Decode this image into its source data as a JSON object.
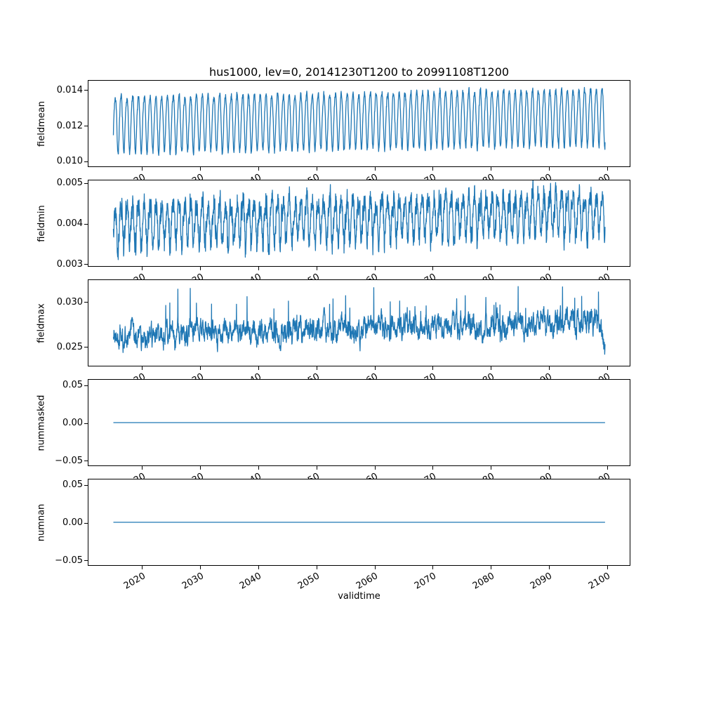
{
  "figure": {
    "title": "hus1000, lev=0, 20141230T1200 to 20991108T1200",
    "xlabel": "validtime",
    "line_color": "#1f77b4",
    "background": "#ffffff",
    "x_start": 2015.0,
    "x_end": 2099.85,
    "xlim": [
      2010.7,
      2104.1
    ],
    "xticks": {
      "values": [
        2020,
        2030,
        2040,
        2050,
        2060,
        2070,
        2080,
        2090,
        2100
      ],
      "labels": [
        "2020",
        "2030",
        "2040",
        "2050",
        "2060",
        "2070",
        "2080",
        "2090",
        "2100"
      ]
    },
    "xtick_rotation_deg": 30
  },
  "chart_data": [
    {
      "type": "line",
      "name": "fieldmean",
      "ylabel": "fieldmean",
      "ylim": [
        0.00965,
        0.01455
      ],
      "yticks": [
        0.01,
        0.012,
        0.014
      ],
      "ytick_labels": [
        "0.010",
        "0.012",
        "0.014"
      ],
      "pattern": {
        "kind": "seasonal",
        "mean": 0.01215,
        "amplitude": 0.0016,
        "harmonic2": 0.00018,
        "noise": 0.00022,
        "trend_total": 0.00045,
        "points_per_year": 30,
        "seed": 7
      }
    },
    {
      "type": "line",
      "name": "fieldmin",
      "ylabel": "fieldmin",
      "ylim": [
        0.00293,
        0.00507
      ],
      "yticks": [
        0.003,
        0.004,
        0.005
      ],
      "ytick_labels": [
        "0.003",
        "0.004",
        "0.005"
      ],
      "pattern": {
        "kind": "seasonal",
        "mean": 0.00398,
        "amplitude": 0.00048,
        "harmonic2": 0.00012,
        "noise": 0.00036,
        "trend_total": 0.0003,
        "points_per_year": 30,
        "seed": 13
      }
    },
    {
      "type": "line",
      "name": "fieldmax",
      "ylabel": "fieldmax",
      "ylim": [
        0.0228,
        0.0325
      ],
      "yticks": [
        0.025,
        0.03
      ],
      "ytick_labels": [
        "0.025",
        "0.030"
      ],
      "pattern": {
        "kind": "rednoise",
        "mean": 0.0262,
        "noise": 0.0009,
        "seasonal": 0.0004,
        "trend_total": 0.0016,
        "spike_prob": 0.013,
        "spike_scale": 0.003,
        "end_dip": 0.0032,
        "points_per_year": 30,
        "seed": 21
      }
    },
    {
      "type": "line",
      "name": "nummasked",
      "ylabel": "nummasked",
      "ylim": [
        -0.0575,
        0.0575
      ],
      "yticks": [
        -0.05,
        0.0,
        0.05
      ],
      "ytick_labels": [
        "−0.05",
        "0.00",
        "0.05"
      ],
      "pattern": {
        "kind": "constant",
        "value": 0,
        "seed": 1
      }
    },
    {
      "type": "line",
      "name": "numnan",
      "ylabel": "numnan",
      "ylim": [
        -0.0575,
        0.0575
      ],
      "yticks": [
        -0.05,
        0.0,
        0.05
      ],
      "ytick_labels": [
        "−0.05",
        "0.00",
        "0.05"
      ],
      "pattern": {
        "kind": "constant",
        "value": 0,
        "seed": 2
      }
    }
  ]
}
